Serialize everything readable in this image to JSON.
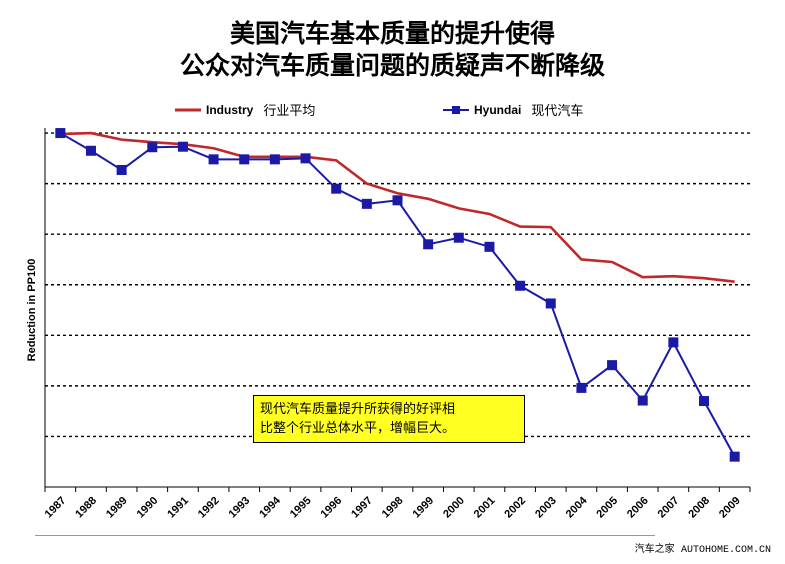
{
  "title_lines": [
    "美国汽车基本质量的提升使得",
    "公众对汽车质量问题的质疑声不断降级"
  ],
  "legend": {
    "industry_en": "Industry",
    "industry_zh": "行业平均",
    "hyundai_en": "Hyundai",
    "hyundai_zh": "现代汽车"
  },
  "annotation_lines": [
    "现代汽车质量提升所获得的好评相",
    "比整个行业总体水平，增幅巨大。"
  ],
  "footer": {
    "zh": "汽车之家",
    "en": "AUTOHOME.COM.CN"
  },
  "colors": {
    "industry": "#c0282a",
    "hyundai": "#1a1aa6",
    "annotation_bg": "#ffff22"
  },
  "chart_data": {
    "type": "line",
    "title": "美国汽车基本质量的提升使得 公众对汽车质量问题的质疑声不断降级",
    "xlabel": "",
    "ylabel": "Reduction in PP100",
    "categories": [
      "1987",
      "1988",
      "1989",
      "1990",
      "1991",
      "1992",
      "1993",
      "1994",
      "1995",
      "1996",
      "1997",
      "1998",
      "1999",
      "2000",
      "2001",
      "2002",
      "2003",
      "2004",
      "2005",
      "2006",
      "2007",
      "2008",
      "2009"
    ],
    "ylim": [
      0,
      7.1
    ],
    "gridlines": [
      1,
      2,
      3,
      4,
      5,
      6,
      7
    ],
    "grid": true,
    "legend_position": "top",
    "series": [
      {
        "name": "Industry 行业平均",
        "marker": "none",
        "values": [
          6.98,
          7.0,
          6.87,
          6.82,
          6.78,
          6.7,
          6.53,
          6.53,
          6.53,
          6.46,
          6.0,
          5.81,
          5.7,
          5.51,
          5.4,
          5.15,
          5.14,
          4.5,
          4.45,
          4.15,
          4.17,
          4.13,
          4.06
        ]
      },
      {
        "name": "Hyundai 现代汽车",
        "marker": "square",
        "values": [
          7.0,
          6.65,
          6.27,
          6.72,
          6.73,
          6.48,
          6.48,
          6.48,
          6.5,
          5.9,
          5.6,
          5.67,
          4.8,
          4.93,
          4.75,
          3.98,
          3.63,
          1.96,
          2.41,
          1.71,
          2.86,
          1.7,
          0.6
        ]
      }
    ]
  }
}
